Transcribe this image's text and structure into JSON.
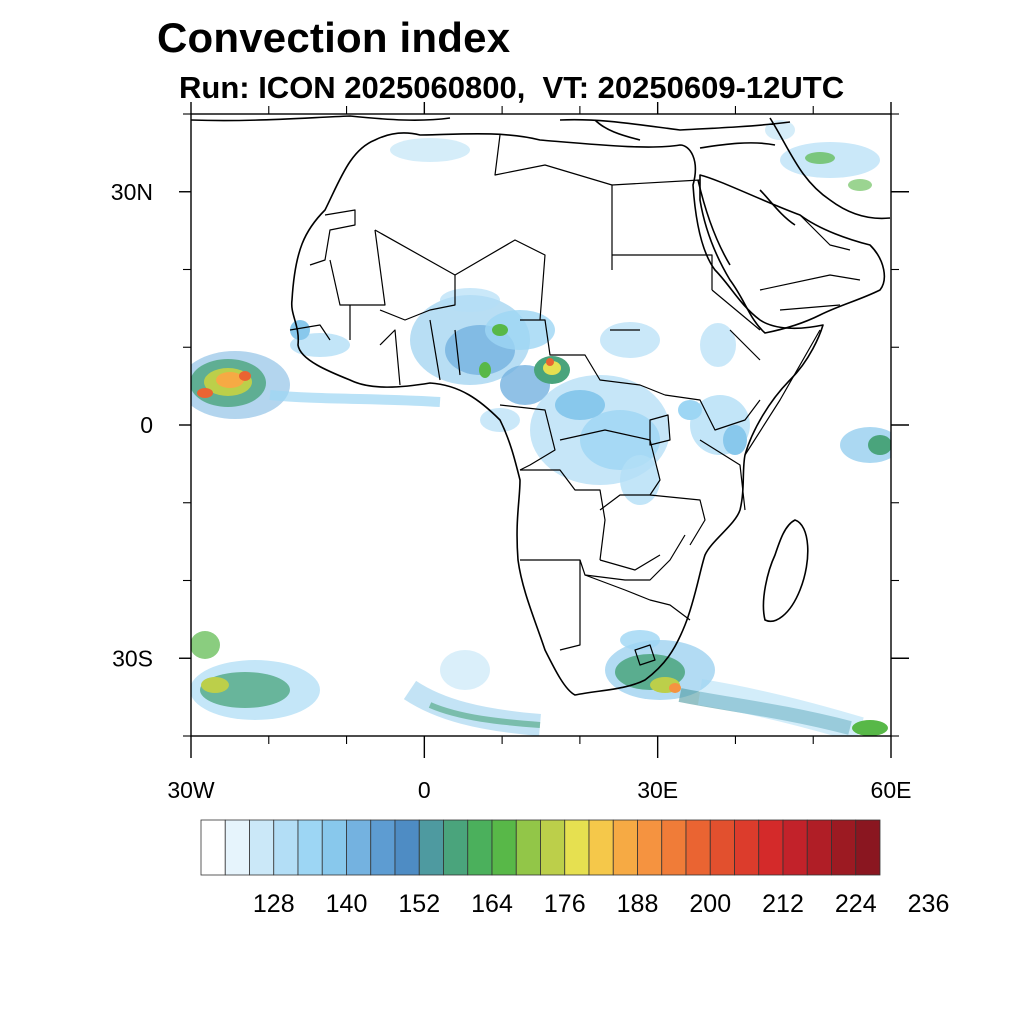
{
  "header": {
    "title": "Convection index",
    "subtitle": "Run: ICON 2025060800,  VT: 20250609-12UTC"
  },
  "map": {
    "region": "Africa",
    "lon_range": [
      -30,
      60
    ],
    "lat_range": [
      -40,
      40
    ],
    "lat_labels": [
      {
        "value": 30,
        "text": "30N"
      },
      {
        "value": 0,
        "text": "0"
      },
      {
        "value": -30,
        "text": "30S"
      }
    ],
    "lon_labels": [
      {
        "value": -30,
        "text": "30W"
      },
      {
        "value": 0,
        "text": "0"
      },
      {
        "value": 30,
        "text": "30E"
      },
      {
        "value": 60,
        "text": "60E"
      }
    ],
    "minor_lat_ticks": [
      40,
      20,
      10,
      -10,
      -20,
      -40
    ],
    "minor_lon_ticks": [
      -20,
      -10,
      10,
      20,
      40,
      50
    ]
  },
  "colorbar": {
    "labels": [
      "128",
      "140",
      "152",
      "164",
      "176",
      "188",
      "200",
      "212",
      "224",
      "236"
    ],
    "colors": [
      "#ffffff",
      "#e6f4fc",
      "#cbe8f8",
      "#b3def6",
      "#9dd6f4",
      "#88c8ec",
      "#74b2e0",
      "#5d9cd2",
      "#4e8cc4",
      "#4e9aa0",
      "#4aa47c",
      "#4bb05c",
      "#58b848",
      "#92c648",
      "#bccf4a",
      "#e6e050",
      "#f5c84a",
      "#f6aa44",
      "#f59340",
      "#f07c38",
      "#ea6432",
      "#e2502e",
      "#dc3c2c",
      "#d42a2a",
      "#c2222a",
      "#b01e26",
      "#9c1a22",
      "#8a1620"
    ]
  }
}
